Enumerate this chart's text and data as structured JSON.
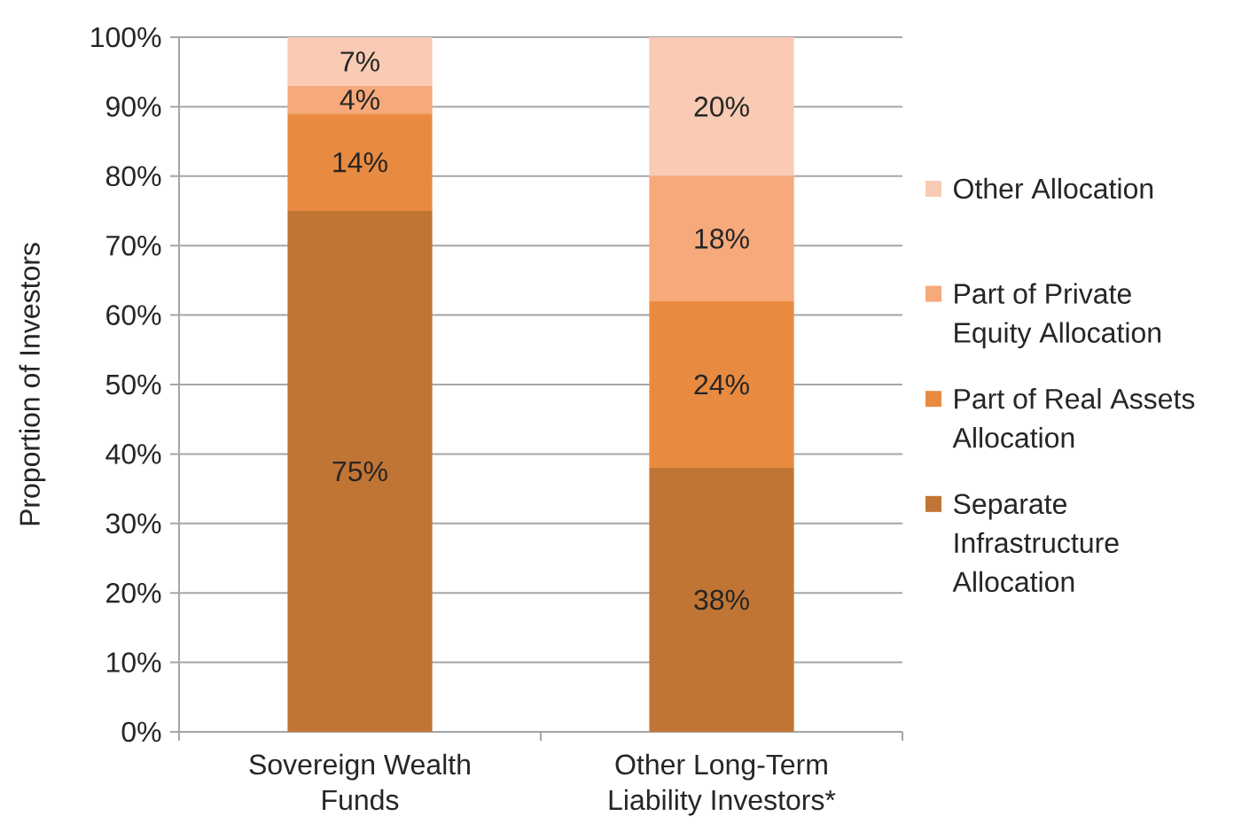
{
  "chart_data": {
    "type": "bar",
    "stacked": true,
    "ylabel": "Proportion of Investors",
    "categories": [
      "Sovereign Wealth Funds",
      "Other Long-Term Liability Investors*"
    ],
    "series": [
      {
        "name": "Separate Infrastructure Allocation",
        "color": "#c17534",
        "values": [
          75,
          38
        ],
        "value_labels": [
          "75%",
          "38%"
        ]
      },
      {
        "name": "Part of Real Assets Allocation",
        "color": "#e88b41",
        "values": [
          14,
          24
        ],
        "value_labels": [
          "14%",
          "24%"
        ]
      },
      {
        "name": "Part of Private Equity Allocation",
        "color": "#f6a97a",
        "values": [
          4,
          18
        ],
        "value_labels": [
          "4%",
          "18%"
        ]
      },
      {
        "name": "Other Allocation",
        "color": "#f9cbb4",
        "values": [
          7,
          20
        ],
        "value_labels": [
          "7%",
          "20%"
        ]
      }
    ],
    "ylim": [
      0,
      100
    ],
    "yticks": [
      {
        "value": 0,
        "label": "0%"
      },
      {
        "value": 10,
        "label": "10%"
      },
      {
        "value": 20,
        "label": "20%"
      },
      {
        "value": 30,
        "label": "30%"
      },
      {
        "value": 40,
        "label": "40%"
      },
      {
        "value": 50,
        "label": "50%"
      },
      {
        "value": 60,
        "label": "60%"
      },
      {
        "value": 70,
        "label": "70%"
      },
      {
        "value": 80,
        "label": "80%"
      },
      {
        "value": 90,
        "label": "90%"
      },
      {
        "value": 100,
        "label": "100%"
      }
    ],
    "grid": "y",
    "legend": "right"
  }
}
